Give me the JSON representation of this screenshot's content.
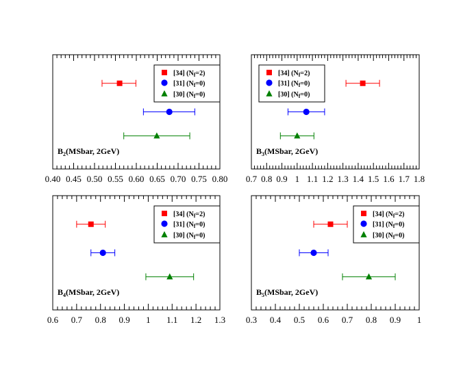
{
  "chart_data": [
    {
      "type": "scatter",
      "label_main": "B",
      "label_sub": "2",
      "label_rest": "(MSbar, 2GeV)",
      "xlim": [
        0.4,
        0.8
      ],
      "xticks": [
        "0.40",
        "0.45",
        "0.50",
        "0.55",
        "0.60",
        "0.65",
        "0.70",
        "0.75",
        "0.80"
      ],
      "series": [
        {
          "ref": "[34]",
          "nf": "2",
          "value": 0.56,
          "err_lo": 0.518,
          "err_hi": 0.599,
          "color": "#ff0000",
          "marker": "square"
        },
        {
          "ref": "[31]",
          "nf": "0",
          "value": 0.679,
          "err_lo": 0.617,
          "err_hi": 0.74,
          "color": "#0000ff",
          "marker": "circle"
        },
        {
          "ref": "[30]",
          "nf": "0",
          "value": 0.649,
          "err_lo": 0.57,
          "err_hi": 0.728,
          "color": "#008000",
          "marker": "triangle"
        }
      ]
    },
    {
      "type": "scatter",
      "label_main": "B",
      "label_sub": "3",
      "label_rest": "(MSbar, 2GeV)",
      "xlim": [
        0.7,
        1.8
      ],
      "xticks": [
        "0.7",
        "0.8",
        "0.9",
        "1",
        "1.1",
        "1.2",
        "1.3",
        "1.4",
        "1.5",
        "1.6",
        "1.7",
        "1.8"
      ],
      "series": [
        {
          "ref": "[34]",
          "nf": "2",
          "value": 1.43,
          "err_lo": 1.32,
          "err_hi": 1.54,
          "color": "#ff0000",
          "marker": "square"
        },
        {
          "ref": "[31]",
          "nf": "0",
          "value": 1.06,
          "err_lo": 0.94,
          "err_hi": 1.18,
          "color": "#0000ff",
          "marker": "circle"
        },
        {
          "ref": "[30]",
          "nf": "0",
          "value": 1.0,
          "err_lo": 0.89,
          "err_hi": 1.11,
          "color": "#008000",
          "marker": "triangle"
        }
      ]
    },
    {
      "type": "scatter",
      "label_main": "B",
      "label_sub": "4",
      "label_rest": "(MSbar, 2GeV)",
      "xlim": [
        0.6,
        1.3
      ],
      "xticks": [
        "0.6",
        "0.7",
        "0.8",
        "0.9",
        "1",
        "1.1",
        "1.2",
        "1.3"
      ],
      "series": [
        {
          "ref": "[34]",
          "nf": "2",
          "value": 0.76,
          "err_lo": 0.7,
          "err_hi": 0.82,
          "color": "#ff0000",
          "marker": "square"
        },
        {
          "ref": "[31]",
          "nf": "0",
          "value": 0.81,
          "err_lo": 0.76,
          "err_hi": 0.86,
          "color": "#0000ff",
          "marker": "circle"
        },
        {
          "ref": "[30]",
          "nf": "0",
          "value": 1.09,
          "err_lo": 0.99,
          "err_hi": 1.19,
          "color": "#008000",
          "marker": "triangle"
        }
      ]
    },
    {
      "type": "scatter",
      "label_main": "B",
      "label_sub": "5",
      "label_rest": "(MSbar, 2GeV)",
      "xlim": [
        0.3,
        1.0
      ],
      "xticks": [
        "0.3",
        "0.4",
        "0.5",
        "0.6",
        "0.7",
        "0.8",
        "0.9",
        "1"
      ],
      "series": [
        {
          "ref": "[34]",
          "nf": "2",
          "value": 0.63,
          "err_lo": 0.56,
          "err_hi": 0.7,
          "color": "#ff0000",
          "marker": "square"
        },
        {
          "ref": "[31]",
          "nf": "0",
          "value": 0.56,
          "err_lo": 0.5,
          "err_hi": 0.62,
          "color": "#0000ff",
          "marker": "circle"
        },
        {
          "ref": "[30]",
          "nf": "0",
          "value": 0.79,
          "err_lo": 0.68,
          "err_hi": 0.9,
          "color": "#008000",
          "marker": "triangle"
        }
      ]
    }
  ]
}
